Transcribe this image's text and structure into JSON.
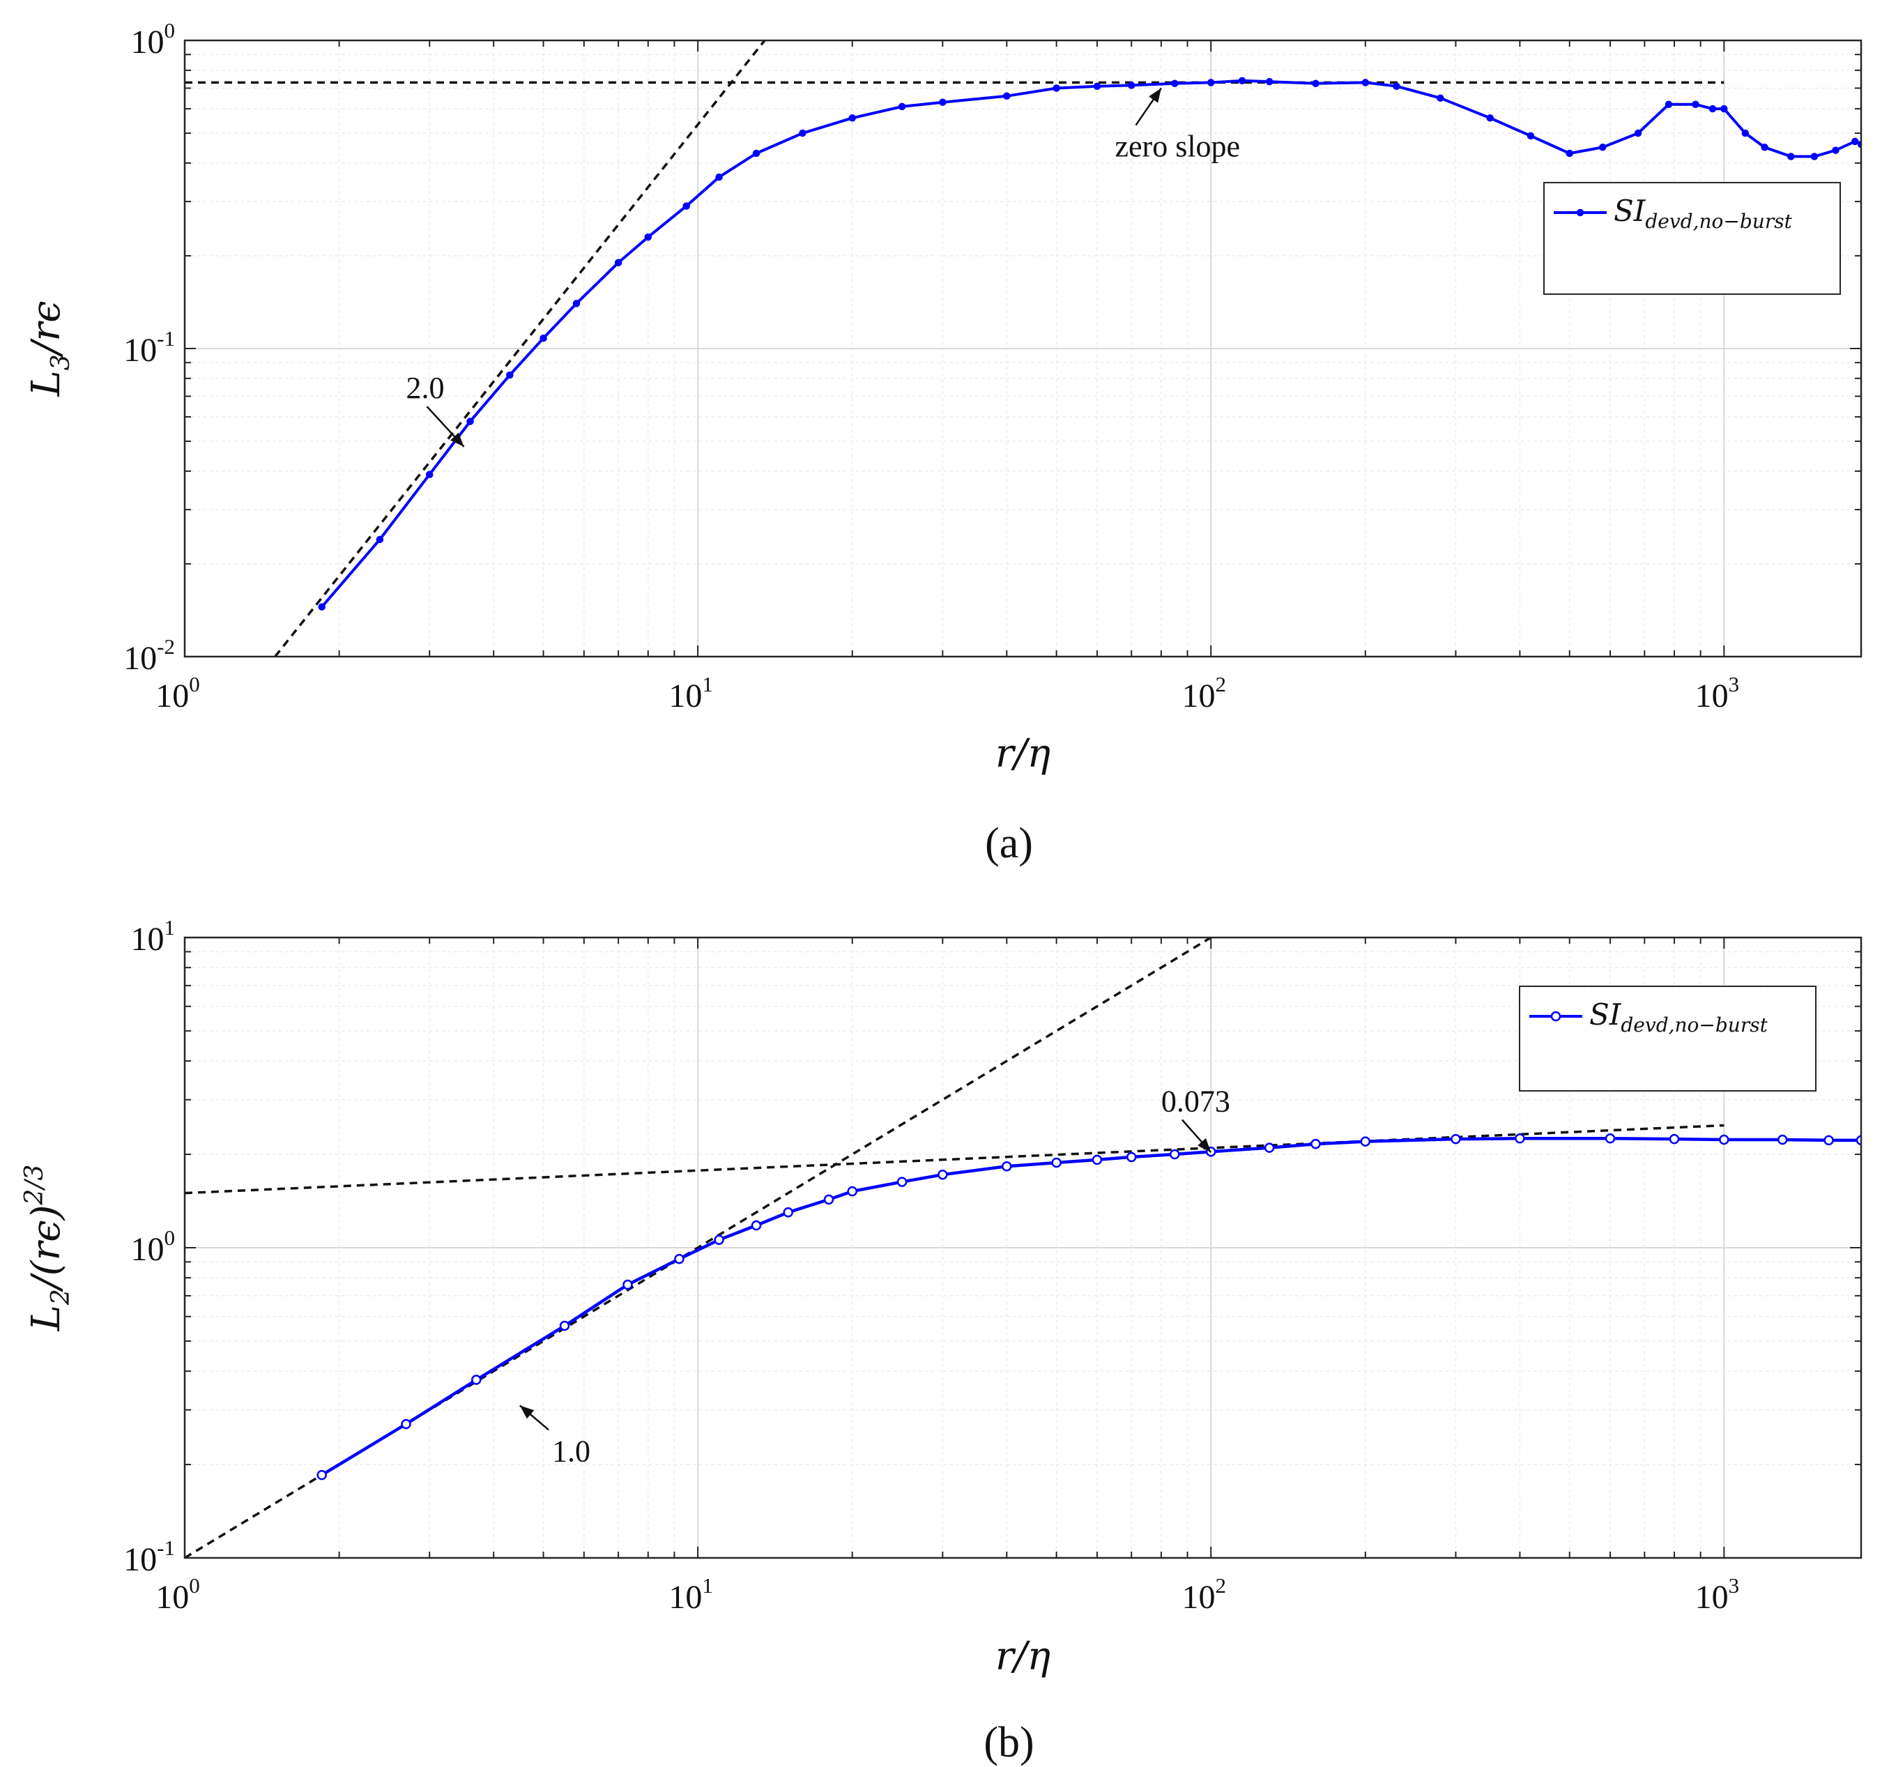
{
  "colors": {
    "series": "#0000ff",
    "reference": "#111111",
    "grid": "#d8d8d8",
    "grid_minor": "#ececec",
    "frame": "#262626"
  },
  "chart_data": [
    {
      "panel": "(a)",
      "type": "line",
      "x_scale": "log",
      "y_scale": "log",
      "xlim": [
        1,
        1850
      ],
      "ylim": [
        0.01,
        1
      ],
      "grid": "on (major and minor)",
      "xlabel": "r/η",
      "ylabel": {
        "main": "L",
        "sub": "3",
        "rest": "/rϵ"
      },
      "xticks": [
        {
          "base": "10",
          "exp": "0",
          "value": 1
        },
        {
          "base": "10",
          "exp": "1",
          "value": 10
        },
        {
          "base": "10",
          "exp": "2",
          "value": 100
        },
        {
          "base": "10",
          "exp": "3",
          "value": 1000
        }
      ],
      "yticks": [
        {
          "base": "10",
          "exp": "-2",
          "value": 0.01
        },
        {
          "base": "10",
          "exp": "-1",
          "value": 0.1
        },
        {
          "base": "10",
          "exp": "0",
          "value": 1
        }
      ],
      "legend": {
        "position": "top-right",
        "main": "SI",
        "sub": "devd,no−burst"
      },
      "series": [
        {
          "name": "SI devd,no-burst",
          "x": [
            1.85,
            2.4,
            3.0,
            3.6,
            4.3,
            5.0,
            5.8,
            7.0,
            8.0,
            9.5,
            11,
            13,
            16,
            20,
            25,
            30,
            40,
            50,
            60,
            70,
            85,
            100,
            115,
            130,
            160,
            200,
            230,
            280,
            350,
            420,
            500,
            580,
            680,
            780,
            880,
            950,
            1000,
            1100,
            1200,
            1350,
            1500,
            1650,
            1800,
            1850
          ],
          "y": [
            0.0145,
            0.024,
            0.039,
            0.058,
            0.082,
            0.108,
            0.14,
            0.19,
            0.23,
            0.29,
            0.36,
            0.43,
            0.5,
            0.56,
            0.61,
            0.63,
            0.66,
            0.7,
            0.71,
            0.715,
            0.725,
            0.73,
            0.74,
            0.735,
            0.725,
            0.73,
            0.71,
            0.65,
            0.56,
            0.49,
            0.43,
            0.45,
            0.5,
            0.62,
            0.62,
            0.6,
            0.6,
            0.5,
            0.45,
            0.42,
            0.42,
            0.44,
            0.47,
            0.46
          ]
        }
      ],
      "reference_lines": [
        {
          "label": "2.0",
          "x": [
            1.5,
            13.5
          ],
          "y": [
            0.01,
            1.0
          ]
        },
        {
          "label": "zero slope",
          "x": [
            1,
            1000
          ],
          "y": [
            0.73,
            0.73
          ]
        }
      ],
      "annotations": [
        {
          "text": "2.0",
          "x": 2.7,
          "y": 0.069,
          "arrow_to": [
            3.5,
            0.048
          ]
        },
        {
          "text": "zero slope",
          "x": 65,
          "y": 0.42,
          "arrow_to": [
            80,
            0.7
          ]
        }
      ]
    },
    {
      "panel": "(b)",
      "type": "line",
      "x_scale": "log",
      "y_scale": "log",
      "xlim": [
        1,
        1850
      ],
      "ylim": [
        0.1,
        10
      ],
      "grid": "on (major and minor)",
      "xlabel": "r/η",
      "ylabel": {
        "main": "L",
        "sub": "2",
        "rest": "/(rϵ)",
        "sup": "2/3"
      },
      "xticks": [
        {
          "base": "10",
          "exp": "0",
          "value": 1
        },
        {
          "base": "10",
          "exp": "1",
          "value": 10
        },
        {
          "base": "10",
          "exp": "2",
          "value": 100
        },
        {
          "base": "10",
          "exp": "3",
          "value": 1000
        }
      ],
      "yticks": [
        {
          "base": "10",
          "exp": "-1",
          "value": 0.1
        },
        {
          "base": "10",
          "exp": "0",
          "value": 1
        },
        {
          "base": "10",
          "exp": "1",
          "value": 10
        }
      ],
      "legend": {
        "position": "top-right",
        "main": "SI",
        "sub": "devd,no−burst"
      },
      "series": [
        {
          "name": "SI devd,no-burst",
          "x": [
            1.85,
            2.7,
            3.7,
            5.5,
            7.3,
            9.2,
            11,
            13,
            15,
            18,
            20,
            25,
            30,
            40,
            50,
            60,
            70,
            85,
            100,
            130,
            160,
            200,
            300,
            400,
            600,
            800,
            1000,
            1300,
            1600,
            1850
          ],
          "y": [
            0.185,
            0.27,
            0.375,
            0.56,
            0.76,
            0.92,
            1.06,
            1.18,
            1.3,
            1.43,
            1.52,
            1.63,
            1.72,
            1.83,
            1.88,
            1.92,
            1.96,
            2.0,
            2.04,
            2.1,
            2.16,
            2.2,
            2.24,
            2.25,
            2.25,
            2.24,
            2.23,
            2.23,
            2.22,
            2.22
          ]
        }
      ],
      "reference_lines": [
        {
          "label": "1.0",
          "x": [
            1,
            100
          ],
          "y": [
            0.1,
            10
          ]
        },
        {
          "label": "0.073",
          "x": [
            1,
            1000
          ],
          "y": [
            1.5,
            2.48
          ]
        }
      ],
      "annotations": [
        {
          "text": "1.0",
          "x": 5.2,
          "y": 0.205,
          "arrow_to": [
            4.5,
            0.31
          ]
        },
        {
          "text": "0.073",
          "x": 80,
          "y": 2.75,
          "arrow_to": [
            100,
            2.03
          ]
        }
      ]
    }
  ]
}
